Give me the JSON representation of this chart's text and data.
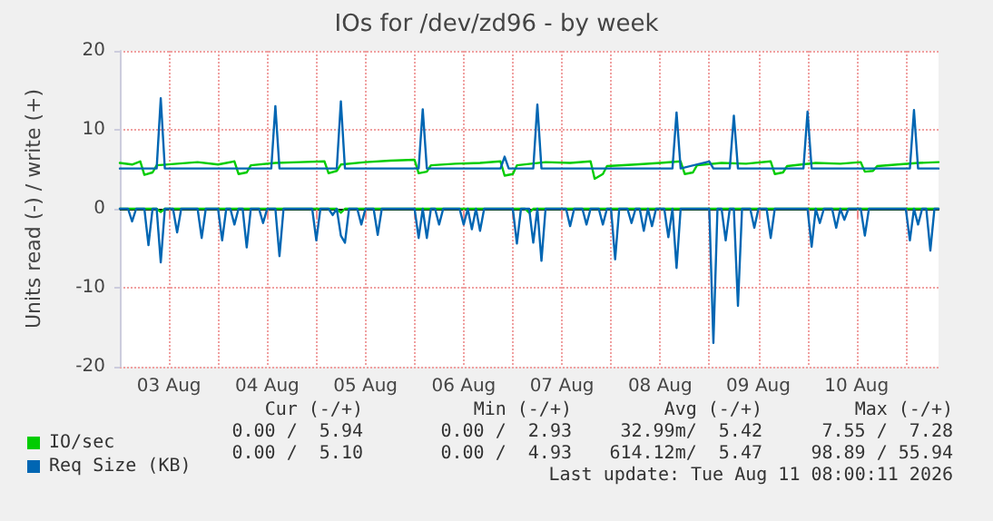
{
  "chart_data": {
    "type": "line",
    "title": "IOs for /dev/zd96 - by week",
    "ylabel": "Units read (-) / write (+)",
    "xlim": [
      "2026-08-03T00:00",
      "2026-08-11T08:00"
    ],
    "xticks": [
      {
        "value": "2026-08-03T12:00",
        "label": "03 Aug"
      },
      {
        "value": "2026-08-04T00:00",
        "label": null
      },
      {
        "value": "2026-08-04T12:00",
        "label": "04 Aug"
      },
      {
        "value": "2026-08-05T00:00",
        "label": null
      },
      {
        "value": "2026-08-05T12:00",
        "label": "05 Aug"
      },
      {
        "value": "2026-08-06T00:00",
        "label": null
      },
      {
        "value": "2026-08-06T12:00",
        "label": "06 Aug"
      },
      {
        "value": "2026-08-07T00:00",
        "label": null
      },
      {
        "value": "2026-08-07T12:00",
        "label": "07 Aug"
      },
      {
        "value": "2026-08-08T00:00",
        "label": null
      },
      {
        "value": "2026-08-08T12:00",
        "label": "08 Aug"
      },
      {
        "value": "2026-08-09T00:00",
        "label": null
      },
      {
        "value": "2026-08-09T12:00",
        "label": "09 Aug"
      },
      {
        "value": "2026-08-10T00:00",
        "label": null
      },
      {
        "value": "2026-08-10T12:00",
        "label": "10 Aug"
      },
      {
        "value": "2026-08-11T00:00",
        "label": null
      }
    ],
    "ylim": [
      -20,
      20
    ],
    "yticks": [
      -20,
      -10,
      0,
      10,
      20
    ],
    "grid": true,
    "legend": "bottom left",
    "marker": "none",
    "line_style": "solid",
    "series": [
      {
        "name": "IO/sec",
        "color": "#00cc00",
        "x": [
          "2026-08-03T00:00",
          "2026-08-03T03:00",
          "2026-08-03T05:00",
          "2026-08-03T06:00",
          "2026-08-03T08:00",
          "2026-08-03T09:00",
          "2026-08-03T14:00",
          "2026-08-03T19:00",
          "2026-08-04T00:00",
          "2026-08-04T04:00",
          "2026-08-04T05:00",
          "2026-08-04T07:00",
          "2026-08-04T08:00",
          "2026-08-04T14:00",
          "2026-08-04T20:00",
          "2026-08-05T02:00",
          "2026-08-05T03:00",
          "2026-08-05T05:00",
          "2026-08-05T06:00",
          "2026-08-05T12:00",
          "2026-08-05T18:00",
          "2026-08-06T00:00",
          "2026-08-06T01:00",
          "2026-08-06T03:00",
          "2026-08-06T04:00",
          "2026-08-06T10:00",
          "2026-08-06T16:00",
          "2026-08-06T21:00",
          "2026-08-06T22:00",
          "2026-08-07T00:00",
          "2026-08-07T01:00",
          "2026-08-07T08:00",
          "2026-08-07T14:00",
          "2026-08-07T19:00",
          "2026-08-07T20:00",
          "2026-08-07T22:00",
          "2026-08-07T23:00",
          "2026-08-08T06:00",
          "2026-08-08T12:00",
          "2026-08-08T17:00",
          "2026-08-08T18:00",
          "2026-08-08T20:00",
          "2026-08-08T21:00",
          "2026-08-09T03:00",
          "2026-08-09T09:00",
          "2026-08-09T15:00",
          "2026-08-09T16:00",
          "2026-08-09T18:00",
          "2026-08-09T19:00",
          "2026-08-10T02:00",
          "2026-08-10T08:00",
          "2026-08-10T13:00",
          "2026-08-10T14:00",
          "2026-08-10T16:00",
          "2026-08-10T17:00",
          "2026-08-10T22:00",
          "2026-08-11T03:00",
          "2026-08-11T08:00"
        ],
        "values": [
          5.8,
          5.6,
          6.0,
          4.3,
          4.6,
          5.5,
          5.7,
          5.9,
          5.6,
          6.0,
          4.4,
          4.6,
          5.5,
          5.8,
          5.9,
          6.0,
          4.5,
          4.8,
          5.6,
          5.9,
          6.1,
          6.2,
          4.5,
          4.7,
          5.5,
          5.7,
          5.8,
          6.0,
          4.2,
          4.4,
          5.5,
          5.9,
          5.8,
          6.0,
          3.8,
          4.4,
          5.4,
          5.6,
          5.8,
          6.0,
          4.4,
          4.6,
          5.5,
          5.8,
          5.7,
          6.0,
          4.4,
          4.6,
          5.4,
          5.8,
          5.7,
          5.9,
          4.7,
          4.8,
          5.4,
          5.6,
          5.8,
          5.9
        ]
      },
      {
        "color": "#00cc00",
        "x": [
          "2026-08-03T00:00",
          "2026-08-03T09:00",
          "2026-08-03T10:00",
          "2026-08-03T11:00",
          "2026-08-05T05:00",
          "2026-08-05T06:00",
          "2026-08-05T07:00",
          "2026-08-07T03:00",
          "2026-08-07T04:00",
          "2026-08-07T05:00",
          "2026-08-11T08:00"
        ],
        "values": [
          0,
          0,
          -0.4,
          0,
          0,
          -0.5,
          0,
          0,
          -0.5,
          0,
          0
        ]
      },
      {
        "name": "Req Size (KB)",
        "color": "#0066b3",
        "x": [
          "2026-08-03T00:00",
          "2026-08-03T09:00",
          "2026-08-03T10:00",
          "2026-08-03T11:00",
          "2026-08-04T13:00",
          "2026-08-04T14:00",
          "2026-08-04T15:00",
          "2026-08-05T05:00",
          "2026-08-05T06:00",
          "2026-08-05T07:00",
          "2026-08-06T01:00",
          "2026-08-06T02:00",
          "2026-08-06T03:00",
          "2026-08-06T21:00",
          "2026-08-06T22:00",
          "2026-08-06T23:00",
          "2026-08-07T05:00",
          "2026-08-07T06:00",
          "2026-08-07T07:00",
          "2026-08-08T15:00",
          "2026-08-08T16:00",
          "2026-08-08T17:00",
          "2026-08-09T00:00",
          "2026-08-09T01:00",
          "2026-08-09T05:00",
          "2026-08-09T06:00",
          "2026-08-09T07:00",
          "2026-08-09T23:00",
          "2026-08-10T00:00",
          "2026-08-10T01:00",
          "2026-08-11T01:00",
          "2026-08-11T02:00",
          "2026-08-11T03:00",
          "2026-08-11T08:00"
        ],
        "values": [
          5.1,
          5.1,
          14,
          5.1,
          5.1,
          13,
          5.1,
          5.1,
          13.6,
          5.1,
          5.1,
          12.6,
          5.1,
          5.1,
          6.6,
          5.1,
          5.1,
          13.2,
          5.1,
          5.1,
          12.2,
          5.1,
          6.0,
          5.1,
          5.1,
          11.8,
          5.1,
          5.1,
          12.3,
          5.1,
          5.1,
          12.5,
          5.1,
          5.1
        ]
      },
      {
        "color": "#0066b3",
        "x": [
          "2026-08-03T00:00",
          "2026-08-03T02:00",
          "2026-08-03T03:00",
          "2026-08-03T04:00",
          "2026-08-03T06:00",
          "2026-08-03T07:00",
          "2026-08-03T08:00",
          "2026-08-03T09:00",
          "2026-08-03T10:00",
          "2026-08-03T11:00",
          "2026-08-03T13:00",
          "2026-08-03T14:00",
          "2026-08-03T15:00",
          "2026-08-03T19:00",
          "2026-08-03T20:00",
          "2026-08-03T21:00",
          "2026-08-04T00:00",
          "2026-08-04T01:00",
          "2026-08-04T02:00",
          "2026-08-04T03:00",
          "2026-08-04T04:00",
          "2026-08-04T05:00",
          "2026-08-04T06:00",
          "2026-08-04T07:00",
          "2026-08-04T08:00",
          "2026-08-04T10:00",
          "2026-08-04T11:00",
          "2026-08-04T12:00",
          "2026-08-04T14:00",
          "2026-08-04T15:00",
          "2026-08-04T16:00",
          "2026-08-04T23:00",
          "2026-08-05T00:00",
          "2026-08-05T01:00",
          "2026-08-05T03:00",
          "2026-08-05T04:00",
          "2026-08-05T05:00",
          "2026-08-05T06:00",
          "2026-08-05T07:00",
          "2026-08-05T08:00",
          "2026-08-05T10:00",
          "2026-08-05T11:00",
          "2026-08-05T12:00",
          "2026-08-05T14:00",
          "2026-08-05T15:00",
          "2026-08-05T16:00",
          "2026-08-06T00:00",
          "2026-08-06T01:00",
          "2026-08-06T02:00",
          "2026-08-06T03:00",
          "2026-08-06T04:00",
          "2026-08-06T05:00",
          "2026-08-06T06:00",
          "2026-08-06T07:00",
          "2026-08-06T11:00",
          "2026-08-06T12:00",
          "2026-08-06T13:00",
          "2026-08-06T14:00",
          "2026-08-06T15:00",
          "2026-08-06T16:00",
          "2026-08-06T17:00",
          "2026-08-07T00:00",
          "2026-08-07T01:00",
          "2026-08-07T02:00",
          "2026-08-07T04:00",
          "2026-08-07T05:00",
          "2026-08-07T06:00",
          "2026-08-07T07:00",
          "2026-08-07T08:00",
          "2026-08-07T13:00",
          "2026-08-07T14:00",
          "2026-08-07T15:00",
          "2026-08-07T17:00",
          "2026-08-07T18:00",
          "2026-08-07T19:00",
          "2026-08-07T21:00",
          "2026-08-07T22:00",
          "2026-08-07T23:00",
          "2026-08-08T00:00",
          "2026-08-08T01:00",
          "2026-08-08T02:00",
          "2026-08-08T04:00",
          "2026-08-08T05:00",
          "2026-08-08T06:00",
          "2026-08-08T07:00",
          "2026-08-08T08:00",
          "2026-08-08T09:00",
          "2026-08-08T10:00",
          "2026-08-08T11:00",
          "2026-08-08T13:00",
          "2026-08-08T14:00",
          "2026-08-08T15:00",
          "2026-08-08T16:00",
          "2026-08-08T17:00",
          "2026-08-09T00:00",
          "2026-08-09T01:00",
          "2026-08-09T02:00",
          "2026-08-09T03:00",
          "2026-08-09T04:00",
          "2026-08-09T05:00",
          "2026-08-09T06:00",
          "2026-08-09T07:00",
          "2026-08-09T08:00",
          "2026-08-09T10:00",
          "2026-08-09T11:00",
          "2026-08-09T12:00",
          "2026-08-09T14:00",
          "2026-08-09T15:00",
          "2026-08-09T16:00",
          "2026-08-10T00:00",
          "2026-08-10T01:00",
          "2026-08-10T02:00",
          "2026-08-10T03:00",
          "2026-08-10T04:00",
          "2026-08-10T06:00",
          "2026-08-10T07:00",
          "2026-08-10T08:00",
          "2026-08-10T09:00",
          "2026-08-10T10:00",
          "2026-08-10T13:00",
          "2026-08-10T14:00",
          "2026-08-10T15:00",
          "2026-08-11T00:00",
          "2026-08-11T01:00",
          "2026-08-11T02:00",
          "2026-08-11T03:00",
          "2026-08-11T04:00",
          "2026-08-11T05:00",
          "2026-08-11T06:00",
          "2026-08-11T07:00",
          "2026-08-11T08:00"
        ],
        "values": [
          0,
          0,
          -1.6,
          0,
          0,
          -4.6,
          0,
          0,
          -6.8,
          0,
          0,
          -3,
          0,
          0,
          -3.7,
          0,
          0,
          -4,
          0,
          0,
          -2,
          0,
          0,
          -4.9,
          0,
          0,
          -1.8,
          0,
          0,
          -6,
          0,
          0,
          -4,
          0,
          0,
          -0.8,
          0,
          -3.4,
          -4.3,
          0,
          0,
          -2,
          0,
          0,
          -3.3,
          0,
          0,
          -3.7,
          0,
          -3.7,
          0,
          0,
          -2,
          0,
          0,
          -2,
          0,
          -2.6,
          0,
          -2.8,
          0,
          0,
          -4.4,
          0,
          0,
          -4.3,
          0,
          -6.6,
          0,
          0,
          -2.2,
          0,
          0,
          -2,
          0,
          0,
          -2,
          0,
          0,
          -6.4,
          0,
          0,
          -1.8,
          0,
          0,
          -2.8,
          0,
          -2.2,
          0,
          0,
          -3.6,
          0,
          -7.5,
          0,
          0,
          -17,
          0,
          0,
          -4,
          0,
          0,
          -12.3,
          0,
          0,
          -2.4,
          0,
          0,
          -3.7,
          0,
          0,
          -4.8,
          0,
          -1.8,
          0,
          0,
          -2.4,
          0,
          -1.4,
          0,
          0,
          -3.4,
          0,
          0,
          -4,
          0,
          -2,
          0,
          0,
          -5.3,
          0,
          0
        ]
      }
    ],
    "annotations": [
      "Cur (-/+)",
      "Min (-/+)",
      "Avg (-/+)",
      "Max (-/+)",
      "0.00 /  5.94",
      "0.00 /  2.93",
      "32.99m/  5.42",
      "7.55 /  7.28",
      "0.00 /  5.10",
      "0.00 /  4.93",
      "614.12m/  5.47",
      "98.89 / 55.94",
      "Last update: Tue Aug 11 08:00:11 2026"
    ]
  }
}
